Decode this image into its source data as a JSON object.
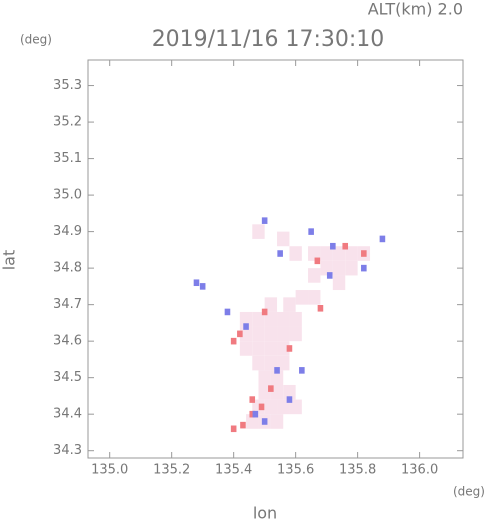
{
  "chart_data": {
    "type": "scatter",
    "title": "2019/11/16 17:30:10",
    "subtitle": "ALT(km) 2.0",
    "y_unit": "(deg)",
    "x_unit": "(deg)",
    "xlabel": "lon",
    "ylabel": "lat",
    "xlim": [
      134.93,
      136.14
    ],
    "ylim": [
      34.28,
      35.37
    ],
    "xticks": [
      {
        "value": 135,
        "label": "135.0"
      },
      135.2,
      135.4,
      135.6,
      135.8,
      {
        "value": 136,
        "label": "136.0"
      }
    ],
    "yticks": [
      34.3,
      34.4,
      34.5,
      34.6,
      34.7,
      34.8,
      34.9,
      {
        "value": 35,
        "label": "35.0"
      },
      35.1,
      35.2,
      35.3
    ],
    "series": [
      {
        "color": "#f8e2ec",
        "size": 0.04,
        "x": [
          135.44,
          135.48,
          135.52,
          135.56,
          135.6,
          135.44,
          135.48,
          135.52,
          135.56,
          135.6,
          135.44,
          135.48,
          135.52,
          135.56,
          135.48,
          135.52,
          135.56,
          135.5,
          135.54,
          135.5,
          135.54,
          135.58,
          135.48,
          135.52,
          135.56,
          135.6,
          135.46,
          135.5,
          135.54,
          135.66,
          135.7,
          135.74,
          135.78,
          135.82,
          135.7,
          135.74,
          135.78,
          135.66,
          135.74,
          135.62,
          135.66,
          135.58,
          135.52,
          135.48,
          135.56,
          135.6
        ],
        "y": [
          34.66,
          34.66,
          34.66,
          34.66,
          34.66,
          34.62,
          34.62,
          34.62,
          34.62,
          34.62,
          34.58,
          34.58,
          34.58,
          34.58,
          34.54,
          34.54,
          34.54,
          34.5,
          34.5,
          34.46,
          34.46,
          34.46,
          34.42,
          34.42,
          34.42,
          34.42,
          34.38,
          34.38,
          34.38,
          34.84,
          34.84,
          34.84,
          34.84,
          34.84,
          34.8,
          34.8,
          34.8,
          34.78,
          34.76,
          34.72,
          34.72,
          34.7,
          34.7,
          34.9,
          34.88,
          34.84
        ]
      },
      {
        "color": "#f07a80",
        "size": 0.018,
        "x": [
          135.4,
          135.43,
          135.46,
          135.49,
          135.42,
          135.4,
          135.5,
          135.67,
          135.76,
          135.82,
          135.68,
          135.46,
          135.58,
          135.52
        ],
        "y": [
          34.36,
          34.37,
          34.4,
          34.42,
          34.62,
          34.6,
          34.68,
          34.82,
          34.86,
          34.84,
          34.69,
          34.44,
          34.58,
          34.47
        ]
      },
      {
        "color": "#7d7ee8",
        "size": 0.018,
        "x": [
          135.5,
          135.65,
          135.72,
          135.82,
          135.88,
          135.44,
          135.47,
          135.54,
          135.58,
          135.62,
          135.28,
          135.3,
          135.5,
          135.38,
          135.55,
          135.71
        ],
        "y": [
          34.93,
          34.9,
          34.86,
          34.8,
          34.88,
          34.64,
          34.4,
          34.52,
          34.44,
          34.52,
          34.76,
          34.75,
          34.38,
          34.68,
          34.84,
          34.78
        ]
      }
    ]
  }
}
